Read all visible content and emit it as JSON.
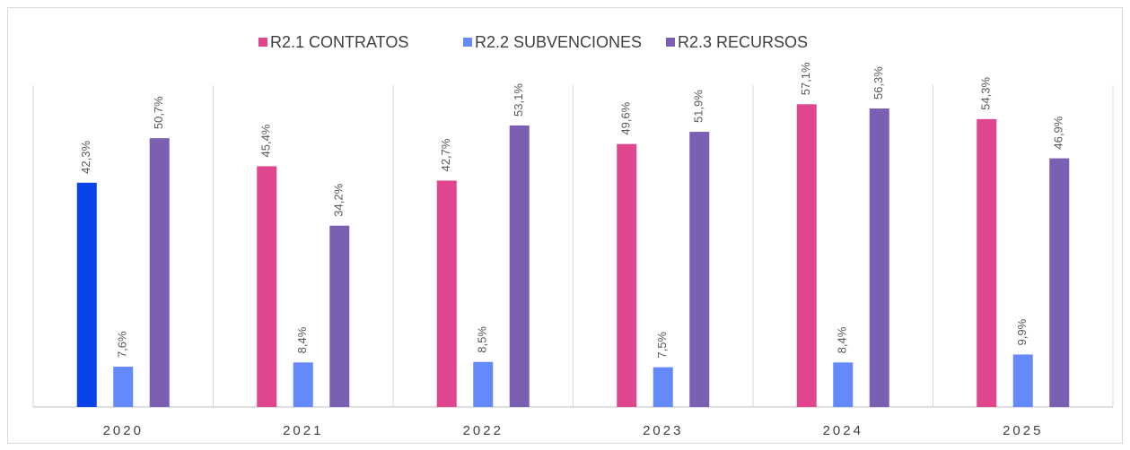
{
  "chart_data": {
    "type": "bar",
    "categories": [
      "2020",
      "2021",
      "2022",
      "2023",
      "2024",
      "2025"
    ],
    "series": [
      {
        "name": "R2.1 CONTRATOS",
        "color": "#e0468e",
        "colors": [
          "#0a44e8",
          "#e0468e",
          "#e0468e",
          "#e0468e",
          "#e0468e",
          "#e0468e"
        ],
        "values": [
          42.3,
          45.4,
          42.7,
          49.6,
          57.1,
          54.3
        ],
        "value_labels": [
          "42,3%",
          "45,4%",
          "42,7%",
          "49,6%",
          "57,1%",
          "54,3%"
        ]
      },
      {
        "name": "R2.2 SUBVENCIONES",
        "color": "#6389fa",
        "values": [
          7.6,
          8.4,
          8.5,
          7.5,
          8.4,
          9.9
        ],
        "value_labels": [
          "7,6%",
          "8,4%",
          "8,5%",
          "7,5%",
          "8,4%",
          "9,9%"
        ]
      },
      {
        "name": "R2.3 RECURSOS",
        "color": "#7b5fb2",
        "values": [
          50.7,
          34.2,
          53.1,
          51.9,
          56.3,
          46.9
        ],
        "value_labels": [
          "50,7%",
          "34,2%",
          "53,1%",
          "51,9%",
          "56,3%",
          "46,9%"
        ]
      }
    ],
    "ylim": [
      0,
      70
    ],
    "legend": "top"
  }
}
